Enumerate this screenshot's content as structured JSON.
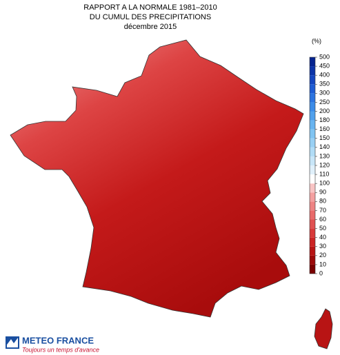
{
  "title": [
    "RAPPORT A LA NORMALE 1981–2010",
    "DU CUMUL DES PRECIPITATIONS",
    "décembre 2015"
  ],
  "colorbar": {
    "unit": "(%)",
    "ticks": [
      0,
      10,
      20,
      30,
      40,
      50,
      60,
      70,
      80,
      90,
      100,
      110,
      120,
      130,
      140,
      150,
      160,
      180,
      200,
      250,
      300,
      350,
      400,
      450,
      500
    ],
    "colors": [
      "#7a0000",
      "#9c0a0a",
      "#b81414",
      "#cc2424",
      "#d83a3a",
      "#e05252",
      "#e86a6a",
      "#ee8484",
      "#f4a0a0",
      "#f8c4c4",
      "#ffffff",
      "#e0f0fa",
      "#c8e6f8",
      "#b0dcf6",
      "#98d0f4",
      "#80c4f2",
      "#68b4f0",
      "#50a0ec",
      "#3c8ce8",
      "#2c74e0",
      "#1e5cd4",
      "#1446c0",
      "#0c34a8",
      "#062490"
    ]
  },
  "logo": {
    "name": "METEO FRANCE",
    "tagline": "Toujours un temps d'avance"
  }
}
